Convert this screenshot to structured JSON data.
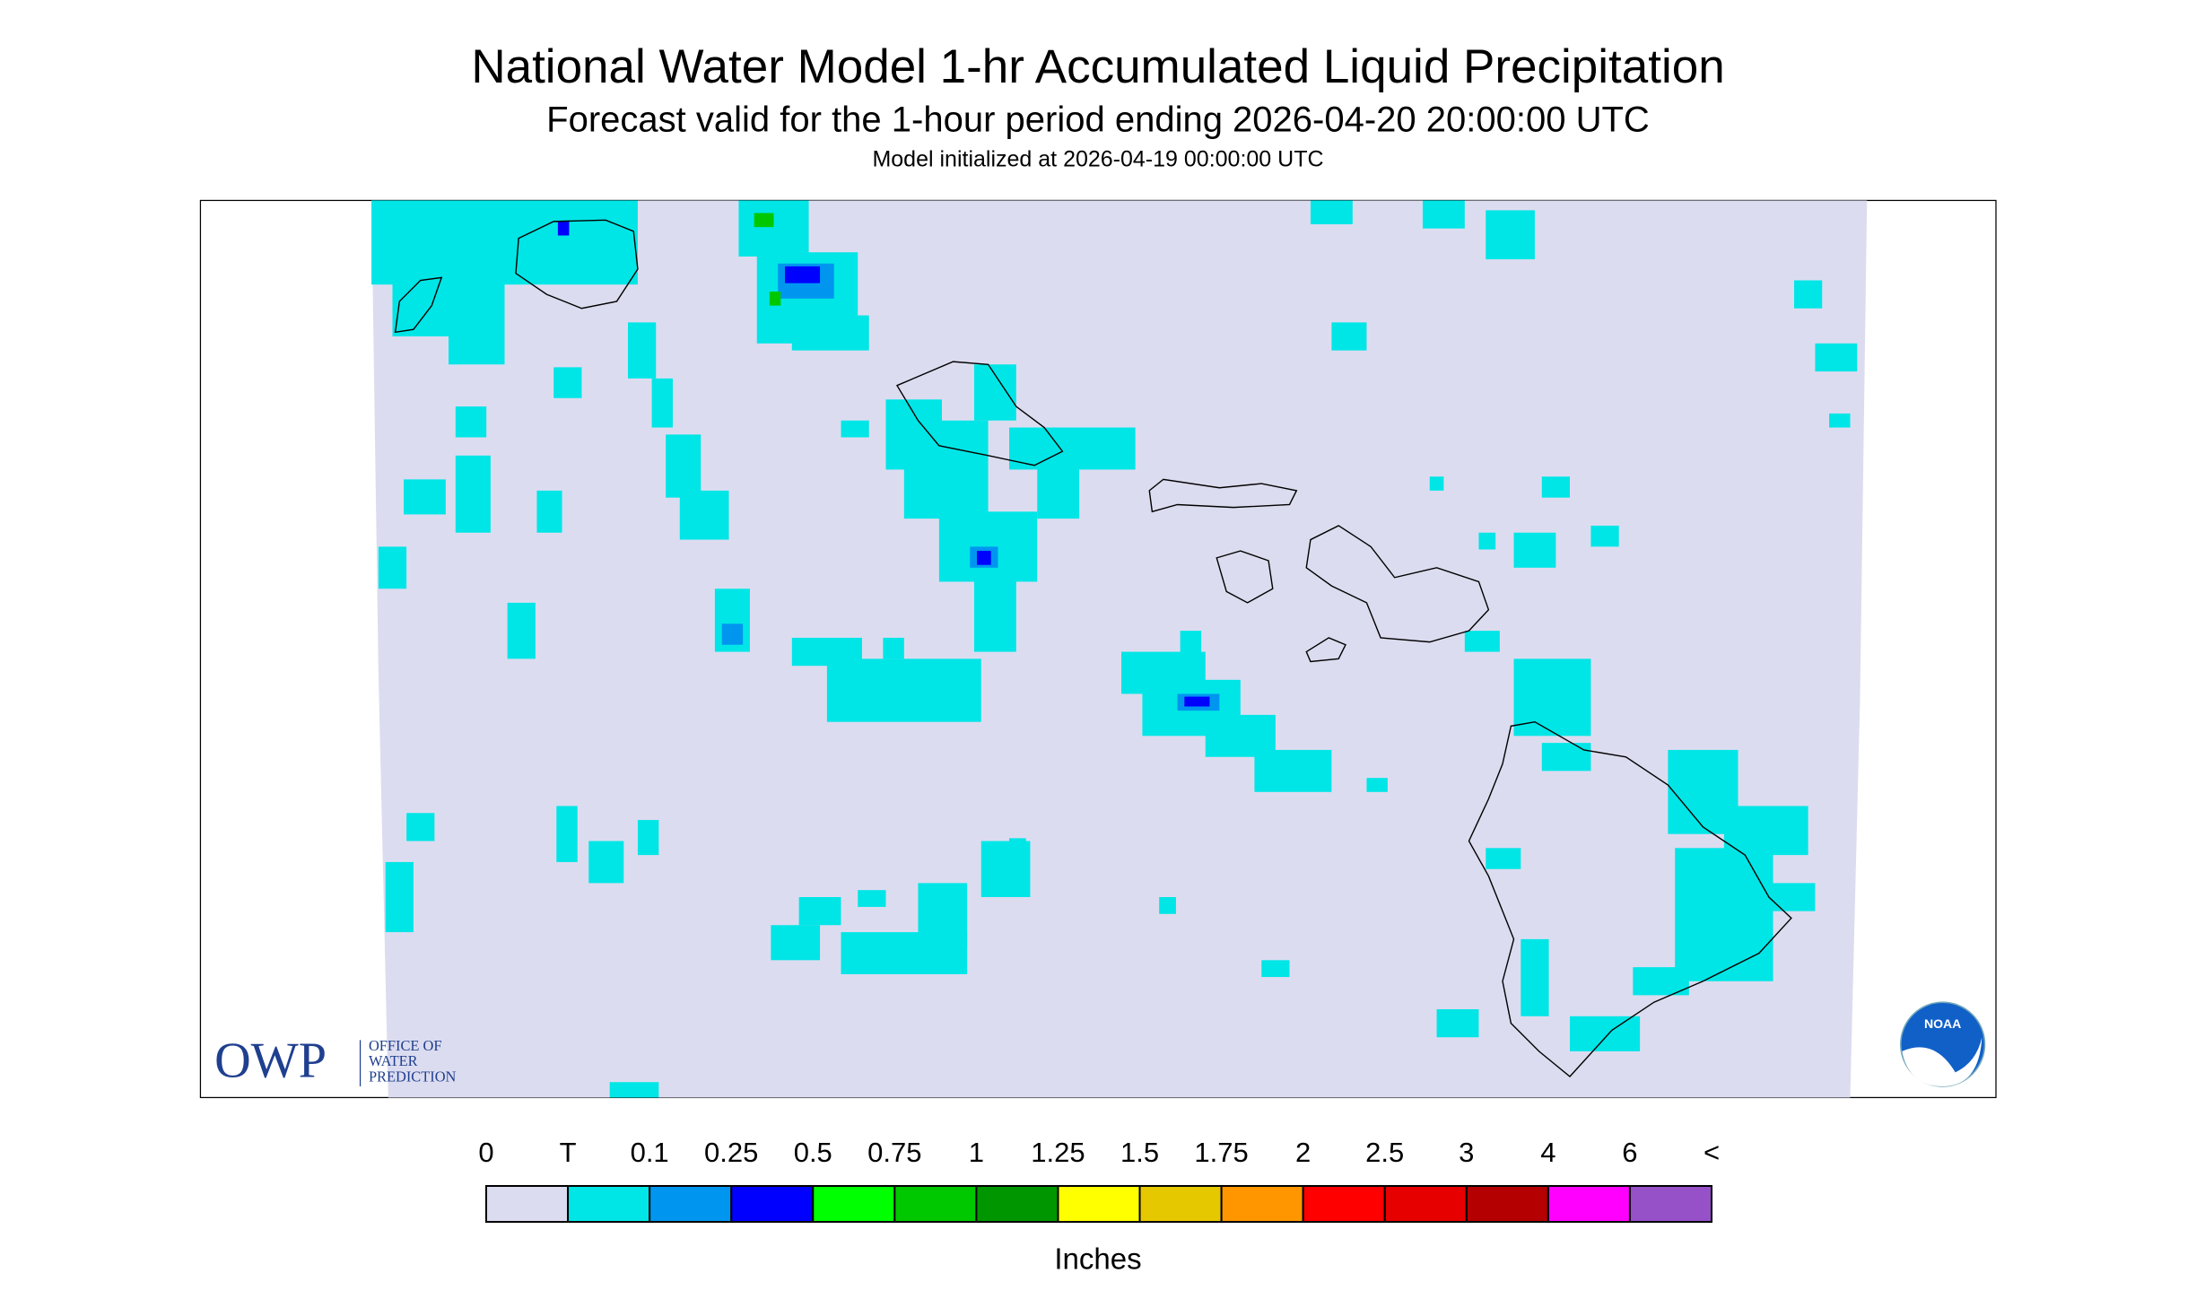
{
  "header": {
    "title": "National Water Model 1-hr Accumulated Liquid Precipitation",
    "subtitle": "Forecast valid for the 1-hour period ending 2026-04-20 20:00:00 UTC",
    "init": "Model initialized at 2026-04-19 00:00:00 UTC"
  },
  "legend": {
    "labels": [
      "0",
      "T",
      "0.1",
      "0.25",
      "0.5",
      "0.75",
      "1",
      "1.25",
      "1.5",
      "1.75",
      "2",
      "2.5",
      "3",
      "4",
      "6",
      "<"
    ],
    "colors": [
      "#dcdcf0",
      "#00e6e6",
      "#0096f0",
      "#0000ff",
      "#00ff00",
      "#00c800",
      "#009600",
      "#ffff00",
      "#e6c800",
      "#ff9600",
      "#ff0000",
      "#e60000",
      "#b40000",
      "#ff00ff",
      "#9650c8"
    ],
    "unit": "Inches"
  },
  "logos": {
    "owp": "OWP",
    "owp_lines": [
      "OFFICE OF",
      "WATER",
      "PREDICTION"
    ],
    "noaa": "NOAA"
  }
}
